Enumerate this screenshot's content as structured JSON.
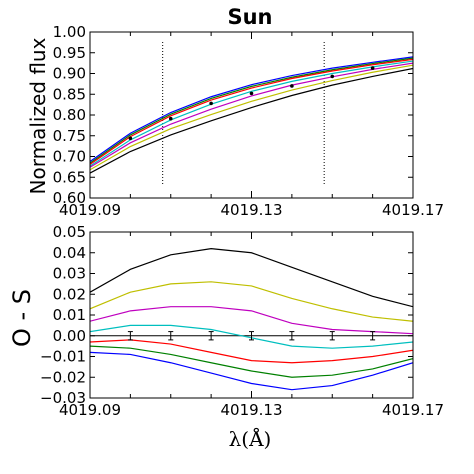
{
  "chart_data": [
    {
      "type": "line",
      "title": "Sun",
      "ylabel": "Normalized flux",
      "xlabel": "",
      "xlim": [
        4019.09,
        4019.17
      ],
      "ylim": [
        0.6,
        1.0
      ],
      "xticks": [
        "4019.09",
        "4019.13",
        "4019.17"
      ],
      "yticks": [
        "0.60",
        "0.65",
        "0.70",
        "0.75",
        "0.80",
        "0.85",
        "0.90",
        "0.95",
        "1.00"
      ],
      "vertical_lines_x": [
        4019.108,
        4019.148
      ],
      "grid": false,
      "series": [
        {
          "color": "#0000ff",
          "x": [
            4019.09,
            4019.1,
            4019.11,
            4019.12,
            4019.13,
            4019.14,
            4019.15,
            4019.16,
            4019.17
          ],
          "y": [
            0.688,
            0.756,
            0.806,
            0.844,
            0.873,
            0.895,
            0.913,
            0.927,
            0.94
          ]
        },
        {
          "color": "#008000",
          "x": [
            4019.09,
            4019.1,
            4019.11,
            4019.12,
            4019.13,
            4019.14,
            4019.15,
            4019.16,
            4019.17
          ],
          "y": [
            0.684,
            0.752,
            0.802,
            0.84,
            0.869,
            0.891,
            0.909,
            0.924,
            0.937
          ]
        },
        {
          "color": "#ff0000",
          "x": [
            4019.09,
            4019.1,
            4019.11,
            4019.12,
            4019.13,
            4019.14,
            4019.15,
            4019.16,
            4019.17
          ],
          "y": [
            0.681,
            0.748,
            0.798,
            0.836,
            0.865,
            0.888,
            0.906,
            0.921,
            0.934
          ]
        },
        {
          "color": "#00bfbf",
          "x": [
            4019.09,
            4019.1,
            4019.11,
            4019.12,
            4019.13,
            4019.14,
            4019.15,
            4019.16,
            4019.17
          ],
          "y": [
            0.677,
            0.74,
            0.788,
            0.826,
            0.857,
            0.881,
            0.9,
            0.916,
            0.93
          ]
        },
        {
          "color": "#bf00bf",
          "x": [
            4019.09,
            4019.1,
            4019.11,
            4019.12,
            4019.13,
            4019.14,
            4019.15,
            4019.16,
            4019.17
          ],
          "y": [
            0.674,
            0.733,
            0.778,
            0.814,
            0.846,
            0.872,
            0.892,
            0.91,
            0.925
          ]
        },
        {
          "color": "#bfbf00",
          "x": [
            4019.09,
            4019.1,
            4019.11,
            4019.12,
            4019.13,
            4019.14,
            4019.15,
            4019.16,
            4019.17
          ],
          "y": [
            0.668,
            0.724,
            0.767,
            0.801,
            0.833,
            0.86,
            0.883,
            0.903,
            0.92
          ]
        },
        {
          "color": "#000000",
          "x": [
            4019.09,
            4019.1,
            4019.11,
            4019.12,
            4019.13,
            4019.14,
            4019.15,
            4019.16,
            4019.17
          ],
          "y": [
            0.66,
            0.712,
            0.752,
            0.786,
            0.818,
            0.847,
            0.872,
            0.893,
            0.912
          ]
        }
      ],
      "observed_points": {
        "x": [
          4019.1,
          4019.11,
          4019.12,
          4019.13,
          4019.14,
          4019.15,
          4019.16
        ],
        "y": [
          0.744,
          0.791,
          0.828,
          0.852,
          0.87,
          0.893,
          0.913
        ]
      }
    },
    {
      "type": "line",
      "title": "",
      "ylabel": "O - S",
      "xlabel": "λ(Å)",
      "xlim": [
        4019.09,
        4019.17
      ],
      "ylim": [
        -0.03,
        0.05
      ],
      "xticks": [
        "4019.09",
        "4019.13",
        "4019.17"
      ],
      "yticks": [
        "−0.03",
        "−0.02",
        "−0.01",
        "0.00",
        "0.01",
        "0.02",
        "0.03",
        "0.04",
        "0.05"
      ],
      "zero_line": true,
      "grid": false,
      "series": [
        {
          "color": "#000000",
          "x": [
            4019.09,
            4019.1,
            4019.11,
            4019.12,
            4019.13,
            4019.14,
            4019.15,
            4019.16,
            4019.17
          ],
          "y": [
            0.021,
            0.032,
            0.039,
            0.042,
            0.04,
            0.033,
            0.026,
            0.019,
            0.014
          ]
        },
        {
          "color": "#bfbf00",
          "x": [
            4019.09,
            4019.1,
            4019.11,
            4019.12,
            4019.13,
            4019.14,
            4019.15,
            4019.16,
            4019.17
          ],
          "y": [
            0.013,
            0.021,
            0.025,
            0.026,
            0.024,
            0.018,
            0.013,
            0.009,
            0.007
          ]
        },
        {
          "color": "#bf00bf",
          "x": [
            4019.09,
            4019.1,
            4019.11,
            4019.12,
            4019.13,
            4019.14,
            4019.15,
            4019.16,
            4019.17
          ],
          "y": [
            0.007,
            0.012,
            0.014,
            0.014,
            0.012,
            0.006,
            0.003,
            0.002,
            0.001
          ]
        },
        {
          "color": "#00bfbf",
          "x": [
            4019.09,
            4019.1,
            4019.11,
            4019.12,
            4019.13,
            4019.14,
            4019.15,
            4019.16,
            4019.17
          ],
          "y": [
            0.002,
            0.005,
            0.005,
            0.003,
            -0.001,
            -0.005,
            -0.006,
            -0.005,
            -0.003
          ]
        },
        {
          "color": "#ff0000",
          "x": [
            4019.09,
            4019.1,
            4019.11,
            4019.12,
            4019.13,
            4019.14,
            4019.15,
            4019.16,
            4019.17
          ],
          "y": [
            -0.003,
            -0.002,
            -0.004,
            -0.008,
            -0.012,
            -0.013,
            -0.012,
            -0.01,
            -0.007
          ]
        },
        {
          "color": "#008000",
          "x": [
            4019.09,
            4019.1,
            4019.11,
            4019.12,
            4019.13,
            4019.14,
            4019.15,
            4019.16,
            4019.17
          ],
          "y": [
            -0.005,
            -0.006,
            -0.009,
            -0.013,
            -0.017,
            -0.02,
            -0.019,
            -0.016,
            -0.011
          ]
        },
        {
          "color": "#0000ff",
          "x": [
            4019.09,
            4019.1,
            4019.11,
            4019.12,
            4019.13,
            4019.14,
            4019.15,
            4019.16,
            4019.17
          ],
          "y": [
            -0.008,
            -0.009,
            -0.013,
            -0.018,
            -0.023,
            -0.026,
            -0.024,
            -0.019,
            -0.013
          ]
        }
      ],
      "error_bars": {
        "x": [
          4019.1,
          4019.11,
          4019.12,
          4019.13,
          4019.14,
          4019.15,
          4019.16
        ],
        "y": [
          0,
          0,
          0,
          0,
          0,
          0,
          0
        ],
        "err": [
          0.002,
          0.002,
          0.002,
          0.002,
          0.002,
          0.002,
          0.002
        ]
      }
    }
  ]
}
